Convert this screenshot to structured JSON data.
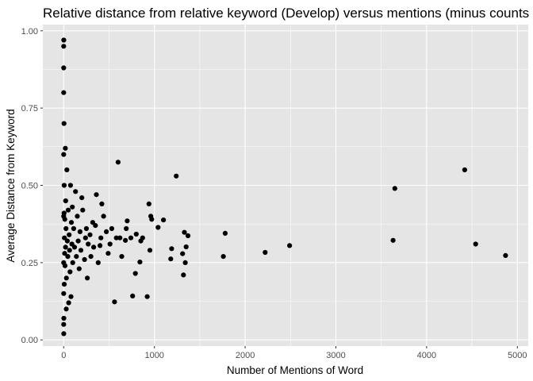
{
  "chart_data": {
    "type": "scatter",
    "title": "Relative distance from relative keyword (Develop) versus mentions (minus counts",
    "xlabel": "Number of Mentions of Word",
    "ylabel": "Average Distance from Keyword",
    "xlim": [
      -230,
      5120
    ],
    "ylim": [
      -0.02,
      1.02
    ],
    "x_ticks": [
      0,
      1000,
      2000,
      3000,
      4000,
      5000
    ],
    "x_tick_labels": [
      "0",
      "1000",
      "2000",
      "3000",
      "4000",
      "5000"
    ],
    "y_ticks": [
      0.0,
      0.25,
      0.5,
      0.75,
      1.0
    ],
    "y_tick_labels": [
      "0.00",
      "0.25",
      "0.50",
      "0.75",
      "1.00"
    ],
    "grid": true,
    "legend": "none",
    "colors": {
      "panel": "#e5e5e5",
      "grid": "#ffffff",
      "point": "#000000"
    },
    "series": [
      {
        "values_note_omitted": null,
        "points": [
          [
            4420,
            0.55
          ],
          [
            3650,
            0.49
          ],
          [
            4870,
            0.273
          ],
          [
            4540,
            0.31
          ],
          [
            3630,
            0.322
          ],
          [
            1240,
            0.53
          ],
          [
            1780,
            0.345
          ],
          [
            1760,
            0.27
          ],
          [
            2490,
            0.305
          ],
          [
            2220,
            0.283
          ],
          [
            1330,
            0.348
          ],
          [
            1370,
            0.337
          ],
          [
            1350,
            0.301
          ],
          [
            1310,
            0.279
          ],
          [
            1340,
            0.25
          ],
          [
            1320,
            0.21
          ],
          [
            1190,
            0.295
          ],
          [
            1180,
            0.262
          ],
          [
            1100,
            0.388
          ],
          [
            1040,
            0.364
          ],
          [
            970,
            0.39
          ],
          [
            960,
            0.4
          ],
          [
            940,
            0.44
          ],
          [
            950,
            0.29
          ],
          [
            920,
            0.14
          ],
          [
            870,
            0.33
          ],
          [
            850,
            0.32
          ],
          [
            840,
            0.252
          ],
          [
            800,
            0.342
          ],
          [
            790,
            0.215
          ],
          [
            760,
            0.142
          ],
          [
            740,
            0.33
          ],
          [
            700,
            0.385
          ],
          [
            690,
            0.36
          ],
          [
            680,
            0.322
          ],
          [
            600,
            0.575
          ],
          [
            560,
            0.123
          ],
          [
            640,
            0.27
          ],
          [
            620,
            0.33
          ],
          [
            580,
            0.33
          ],
          [
            530,
            0.36
          ],
          [
            510,
            0.31
          ],
          [
            490,
            0.28
          ],
          [
            470,
            0.35
          ],
          [
            440,
            0.4
          ],
          [
            420,
            0.44
          ],
          [
            410,
            0.33
          ],
          [
            400,
            0.305
          ],
          [
            380,
            0.25
          ],
          [
            360,
            0.47
          ],
          [
            350,
            0.37
          ],
          [
            330,
            0.3
          ],
          [
            320,
            0.38
          ],
          [
            300,
            0.27
          ],
          [
            290,
            0.34
          ],
          [
            270,
            0.31
          ],
          [
            260,
            0.2
          ],
          [
            250,
            0.36
          ],
          [
            240,
            0.33
          ],
          [
            230,
            0.26
          ],
          [
            210,
            0.42
          ],
          [
            200,
            0.46
          ],
          [
            190,
            0.29
          ],
          [
            180,
            0.35
          ],
          [
            170,
            0.23
          ],
          [
            160,
            0.32
          ],
          [
            150,
            0.4
          ],
          [
            140,
            0.27
          ],
          [
            130,
            0.48
          ],
          [
            120,
            0.3
          ],
          [
            110,
            0.36
          ],
          [
            100,
            0.25
          ],
          [
            95,
            0.43
          ],
          [
            90,
            0.31
          ],
          [
            85,
            0.38
          ],
          [
            80,
            0.14
          ],
          [
            75,
            0.5
          ],
          [
            70,
            0.22
          ],
          [
            65,
            0.29
          ],
          [
            60,
            0.34
          ],
          [
            55,
            0.12
          ],
          [
            50,
            0.42
          ],
          [
            45,
            0.27
          ],
          [
            40,
            0.32
          ],
          [
            35,
            0.55
          ],
          [
            30,
            0.2
          ],
          [
            28,
            0.1
          ],
          [
            25,
            0.36
          ],
          [
            22,
            0.45
          ],
          [
            20,
            0.3
          ],
          [
            18,
            0.62
          ],
          [
            15,
            0.24
          ],
          [
            12,
            0.39
          ],
          [
            10,
            0.28
          ],
          [
            8,
            0.33
          ],
          [
            6,
            0.18
          ],
          [
            5,
            0.5
          ],
          [
            4,
            0.41
          ],
          [
            3,
            0.7
          ],
          [
            2,
            0.07
          ],
          [
            1,
            0.97
          ],
          [
            1,
            0.02
          ],
          [
            0,
            0.95
          ],
          [
            0,
            0.05
          ],
          [
            0,
            0.88
          ],
          [
            0,
            0.8
          ],
          [
            0,
            0.6
          ],
          [
            0,
            0.4
          ],
          [
            0,
            0.25
          ],
          [
            0,
            0.15
          ]
        ]
      }
    ]
  }
}
